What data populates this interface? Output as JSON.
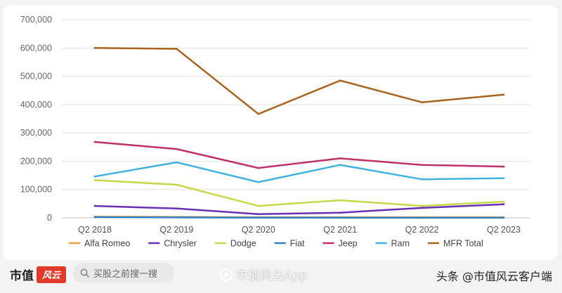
{
  "chart_data": {
    "type": "line",
    "categories": [
      "Q2 2018",
      "Q2 2019",
      "Q2 2020",
      "Q2 2021",
      "Q2 2022",
      "Q2 2023"
    ],
    "y_ticks": [
      "0",
      "100,000",
      "200,000",
      "300,000",
      "400,000",
      "500,000",
      "600,000",
      "700,000"
    ],
    "ylim": [
      0,
      700000
    ],
    "grid": true,
    "legend_position": "bottom",
    "series": [
      {
        "name": "Alfa Romeo",
        "color": "#f2a03d",
        "values": [
          4000,
          3000,
          2000,
          2000,
          2000,
          2000
        ]
      },
      {
        "name": "Chrysler",
        "color": "#6a2fb5",
        "values": [
          42000,
          33000,
          13000,
          18000,
          35000,
          48000
        ]
      },
      {
        "name": "Dodge",
        "color": "#c5d94a",
        "values": [
          133000,
          117000,
          42000,
          62000,
          42000,
          57000
        ]
      },
      {
        "name": "Fiat",
        "color": "#2f7fc1",
        "values": [
          2500,
          1500,
          500,
          500,
          300,
          300
        ]
      },
      {
        "name": "Jeep",
        "color": "#c2306a",
        "values": [
          268000,
          243000,
          176000,
          210000,
          187000,
          181000
        ]
      },
      {
        "name": "Ram",
        "color": "#3fb3df",
        "values": [
          146000,
          196000,
          126000,
          187000,
          136000,
          140000
        ]
      },
      {
        "name": "MFR Total",
        "color": "#a8631e",
        "values": [
          600000,
          597000,
          367000,
          485000,
          408000,
          435000
        ]
      }
    ]
  },
  "footer": {
    "brand": "市值",
    "brand_logo": "风云",
    "search_placeholder": "买股之前搜一搜",
    "watermark": "市值风云App",
    "credit": "头条 @市值风云客户端"
  }
}
